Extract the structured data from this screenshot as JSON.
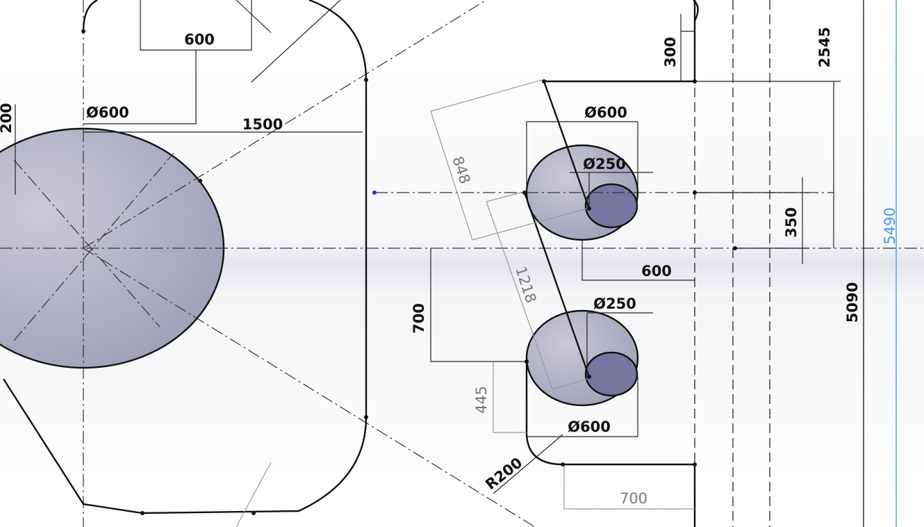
{
  "dimensions": [
    "600",
    "Ø600",
    "1500",
    "200",
    "300",
    "2545",
    "848",
    "1218",
    "Ø600",
    "Ø250",
    "350",
    "5490",
    "600",
    "700",
    "Ø250",
    "5090",
    "445",
    "Ø600",
    "R200",
    "700"
  ]
}
